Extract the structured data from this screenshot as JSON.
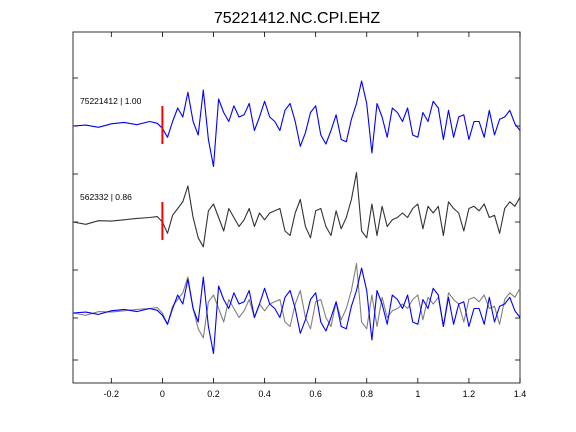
{
  "chart_data": {
    "type": "line",
    "title": "75221412.NC.CPI.EHZ",
    "xlabel": "",
    "ylabel": "",
    "xlim": [
      -0.35,
      1.4
    ],
    "xticks": [
      -0.2,
      0,
      0.2,
      0.4,
      0.6,
      0.8,
      1,
      1.2,
      1.4
    ],
    "xtick_labels": [
      "-0.2",
      "0",
      "0.2",
      "0.4",
      "0.6",
      "0.8",
      "1",
      "1.2",
      "1.4"
    ],
    "grid": false,
    "pick_time": 0,
    "colors": {
      "blue": "#0000ff",
      "black": "#333333",
      "gray": "#808080",
      "pick": "#ff0000"
    },
    "panels": [
      {
        "label": "75221412 | 1.00",
        "pick_marker": true,
        "series": [
          {
            "color": "#0000ff",
            "x": [
              -0.35,
              -0.3,
              -0.25,
              -0.2,
              -0.15,
              -0.1,
              -0.05,
              -0.02,
              0,
              0.02,
              0.04,
              0.06,
              0.08,
              0.1,
              0.12,
              0.14,
              0.16,
              0.18,
              0.2,
              0.22,
              0.24,
              0.26,
              0.28,
              0.3,
              0.32,
              0.34,
              0.36,
              0.38,
              0.4,
              0.42,
              0.44,
              0.46,
              0.48,
              0.5,
              0.52,
              0.54,
              0.56,
              0.58,
              0.6,
              0.62,
              0.64,
              0.66,
              0.68,
              0.7,
              0.72,
              0.74,
              0.76,
              0.78,
              0.8,
              0.82,
              0.84,
              0.86,
              0.88,
              0.9,
              0.92,
              0.94,
              0.96,
              0.98,
              1,
              1.02,
              1.04,
              1.06,
              1.08,
              1.1,
              1.12,
              1.14,
              1.16,
              1.18,
              1.2,
              1.22,
              1.24,
              1.26,
              1.28,
              1.3,
              1.32,
              1.34,
              1.36,
              1.38,
              1.4
            ],
            "y": [
              0,
              0.02,
              -0.03,
              0.05,
              0.08,
              0.03,
              0.1,
              0.06,
              -0.05,
              -0.25,
              0.1,
              0.4,
              0.2,
              0.75,
              0.1,
              -0.2,
              0.8,
              -0.3,
              -0.9,
              0.6,
              0.3,
              0.1,
              0.45,
              0.2,
              0.25,
              0.5,
              -0.1,
              0.2,
              0.55,
              0.2,
              0.1,
              -0.1,
              0.35,
              0.5,
              0.1,
              -0.45,
              -0.15,
              0.3,
              0.45,
              -0.2,
              -0.4,
              -0.1,
              0.25,
              -0.3,
              -0.35,
              0.15,
              0.5,
              1.0,
              0.5,
              -0.6,
              0.5,
              0.2,
              -0.25,
              0.4,
              0.3,
              0.1,
              0.4,
              -0.2,
              -0.25,
              0.3,
              0.1,
              0.55,
              0.4,
              -0.3,
              0.35,
              -0.25,
              0.2,
              0.25,
              -0.3,
              0.1,
              0.1,
              -0.25,
              0.35,
              -0.2,
              0.15,
              0.2,
              0.35,
              0.05,
              -0.1
            ]
          }
        ]
      },
      {
        "label": "562332 | 0.86",
        "pick_marker": true,
        "series": [
          {
            "color": "#333333",
            "x": [
              -0.35,
              -0.3,
              -0.25,
              -0.2,
              -0.15,
              -0.1,
              -0.05,
              -0.02,
              0,
              0.02,
              0.04,
              0.06,
              0.08,
              0.1,
              0.12,
              0.14,
              0.16,
              0.18,
              0.2,
              0.22,
              0.24,
              0.26,
              0.28,
              0.3,
              0.32,
              0.34,
              0.36,
              0.38,
              0.4,
              0.42,
              0.44,
              0.46,
              0.48,
              0.5,
              0.52,
              0.54,
              0.56,
              0.58,
              0.6,
              0.62,
              0.64,
              0.66,
              0.68,
              0.7,
              0.72,
              0.74,
              0.76,
              0.78,
              0.8,
              0.82,
              0.84,
              0.86,
              0.88,
              0.9,
              0.92,
              0.94,
              0.96,
              0.98,
              1,
              1.02,
              1.04,
              1.06,
              1.08,
              1.1,
              1.12,
              1.14,
              1.16,
              1.18,
              1.2,
              1.22,
              1.24,
              1.26,
              1.28,
              1.3,
              1.32,
              1.34,
              1.36,
              1.38,
              1.4
            ],
            "y": [
              0,
              -0.05,
              0.03,
              0.02,
              0.05,
              0.08,
              0.1,
              0.12,
              0,
              -0.25,
              0.15,
              0.3,
              0.45,
              0.8,
              0.1,
              -0.35,
              -0.55,
              0.25,
              0.4,
              0.1,
              -0.2,
              0.3,
              0.1,
              -0.1,
              0.05,
              0.3,
              -0.1,
              0.2,
              0.05,
              0.2,
              0.25,
              0.3,
              -0.2,
              -0.3,
              0.2,
              0.5,
              -0.1,
              -0.35,
              0.25,
              0.3,
              -0.1,
              -0.3,
              0.25,
              -0.15,
              0.1,
              0.5,
              1.1,
              -0.2,
              -0.35,
              0.4,
              -0.3,
              0.35,
              -0.1,
              0.05,
              0.1,
              0.2,
              0.1,
              0.3,
              0.4,
              -0.15,
              0.35,
              0.2,
              0.35,
              -0.3,
              0.45,
              0.3,
              0.2,
              -0.2,
              0.3,
              0.35,
              0.25,
              0.4,
              0.1,
              0.15,
              -0.25,
              0.3,
              0.45,
              0.35,
              0.55
            ]
          }
        ]
      },
      {
        "label": "",
        "pick_marker": false,
        "series": [
          {
            "color": "#808080",
            "x": [
              -0.35,
              -0.3,
              -0.25,
              -0.2,
              -0.15,
              -0.1,
              -0.05,
              -0.02,
              0,
              0.02,
              0.04,
              0.06,
              0.08,
              0.1,
              0.12,
              0.14,
              0.16,
              0.18,
              0.2,
              0.22,
              0.24,
              0.26,
              0.28,
              0.3,
              0.32,
              0.34,
              0.36,
              0.38,
              0.4,
              0.42,
              0.44,
              0.46,
              0.48,
              0.5,
              0.52,
              0.54,
              0.56,
              0.58,
              0.6,
              0.62,
              0.64,
              0.66,
              0.68,
              0.7,
              0.72,
              0.74,
              0.76,
              0.78,
              0.8,
              0.82,
              0.84,
              0.86,
              0.88,
              0.9,
              0.92,
              0.94,
              0.96,
              0.98,
              1,
              1.02,
              1.04,
              1.06,
              1.08,
              1.1,
              1.12,
              1.14,
              1.16,
              1.18,
              1.2,
              1.22,
              1.24,
              1.26,
              1.28,
              1.3,
              1.32,
              1.34,
              1.36,
              1.38,
              1.4
            ],
            "y": [
              0,
              -0.05,
              0.03,
              0.02,
              0.05,
              0.08,
              0.1,
              0.12,
              0,
              -0.25,
              0.15,
              0.3,
              0.45,
              0.8,
              0.1,
              -0.35,
              -0.55,
              0.25,
              0.4,
              0.1,
              -0.2,
              0.3,
              0.1,
              -0.1,
              0.05,
              0.3,
              -0.1,
              0.2,
              0.05,
              0.2,
              0.25,
              0.3,
              -0.2,
              -0.3,
              0.2,
              0.5,
              -0.1,
              -0.35,
              0.25,
              0.3,
              -0.1,
              -0.3,
              0.25,
              -0.15,
              0.1,
              0.5,
              1.1,
              -0.2,
              -0.35,
              0.4,
              -0.3,
              0.35,
              -0.1,
              0.05,
              0.1,
              0.2,
              0.1,
              0.3,
              0.4,
              -0.15,
              0.35,
              0.2,
              0.35,
              -0.3,
              0.45,
              0.3,
              0.2,
              -0.2,
              0.3,
              0.35,
              0.25,
              0.4,
              0.1,
              0.15,
              -0.25,
              0.3,
              0.45,
              0.35,
              0.55
            ]
          },
          {
            "color": "#0000ff",
            "x": [
              -0.35,
              -0.3,
              -0.25,
              -0.2,
              -0.15,
              -0.1,
              -0.05,
              -0.02,
              0,
              0.02,
              0.04,
              0.06,
              0.08,
              0.1,
              0.12,
              0.14,
              0.16,
              0.18,
              0.2,
              0.22,
              0.24,
              0.26,
              0.28,
              0.3,
              0.32,
              0.34,
              0.36,
              0.38,
              0.4,
              0.42,
              0.44,
              0.46,
              0.48,
              0.5,
              0.52,
              0.54,
              0.56,
              0.58,
              0.6,
              0.62,
              0.64,
              0.66,
              0.68,
              0.7,
              0.72,
              0.74,
              0.76,
              0.78,
              0.8,
              0.82,
              0.84,
              0.86,
              0.88,
              0.9,
              0.92,
              0.94,
              0.96,
              0.98,
              1,
              1.02,
              1.04,
              1.06,
              1.08,
              1.1,
              1.12,
              1.14,
              1.16,
              1.18,
              1.2,
              1.22,
              1.24,
              1.26,
              1.28,
              1.3,
              1.32,
              1.34,
              1.36,
              1.38,
              1.4
            ],
            "y": [
              0,
              0.02,
              -0.03,
              0.05,
              0.08,
              0.03,
              0.1,
              0.06,
              -0.05,
              -0.25,
              0.1,
              0.4,
              0.2,
              0.75,
              0.1,
              -0.2,
              0.8,
              -0.3,
              -0.9,
              0.6,
              0.3,
              0.1,
              0.45,
              0.2,
              0.25,
              0.5,
              -0.1,
              0.2,
              0.55,
              0.2,
              0.1,
              -0.1,
              0.35,
              0.5,
              0.1,
              -0.45,
              -0.15,
              0.3,
              0.45,
              -0.2,
              -0.4,
              -0.1,
              0.25,
              -0.3,
              -0.35,
              0.15,
              0.5,
              1.0,
              0.5,
              -0.6,
              0.5,
              0.2,
              -0.25,
              0.4,
              0.3,
              0.1,
              0.4,
              -0.2,
              -0.25,
              0.3,
              0.1,
              0.55,
              0.4,
              -0.3,
              0.35,
              -0.25,
              0.2,
              0.25,
              -0.3,
              0.1,
              0.1,
              -0.25,
              0.35,
              -0.2,
              0.15,
              0.2,
              0.35,
              0.05,
              -0.1
            ]
          }
        ]
      }
    ]
  }
}
